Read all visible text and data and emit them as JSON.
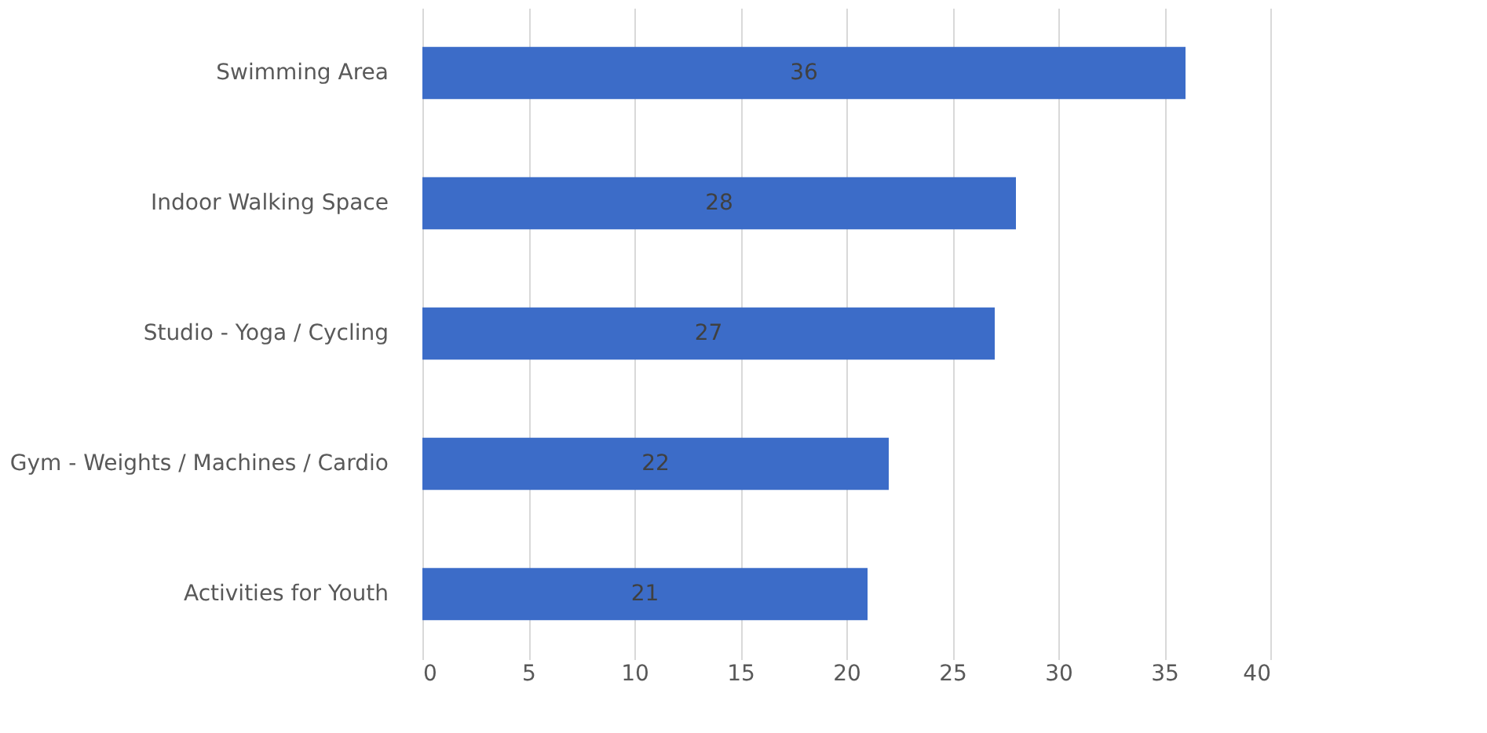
{
  "chart_data": {
    "type": "bar",
    "orientation": "horizontal",
    "categories": [
      "Swimming Area",
      "Indoor Walking Space",
      "Studio - Yoga / Cycling",
      "Gym - Weights / Machines / Cardio",
      "Activities for Youth"
    ],
    "values": [
      36,
      28,
      27,
      22,
      21
    ],
    "color": "#3c6cc8",
    "xlim": [
      0,
      40
    ],
    "xticks": [
      0,
      5,
      10,
      15,
      20,
      25,
      30,
      35,
      40
    ],
    "grid": "x",
    "data_labels": true
  }
}
